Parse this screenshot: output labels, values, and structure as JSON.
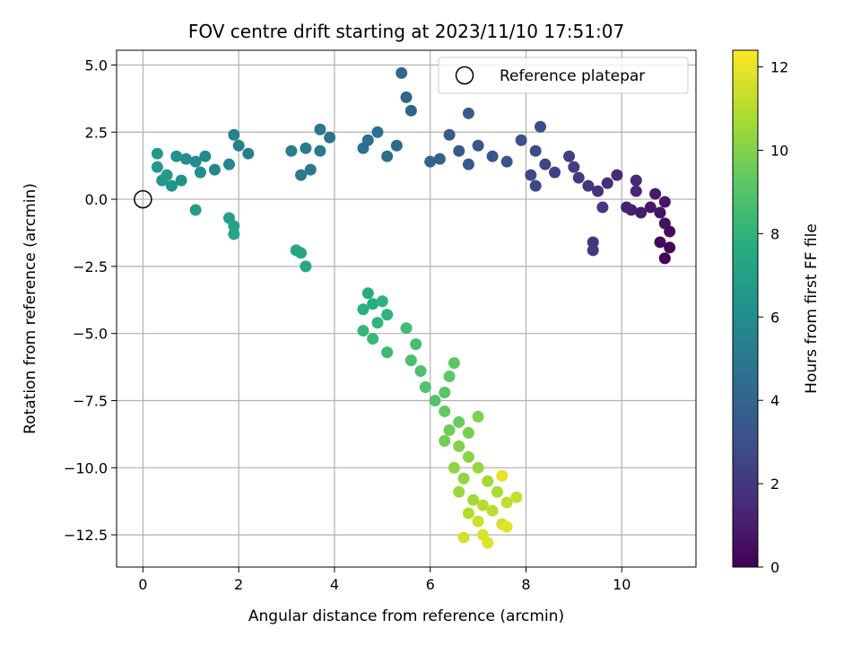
{
  "chart_data": {
    "type": "scatter",
    "title": "FOV centre drift starting at 2023/11/10 17:51:07",
    "xlabel": "Angular distance from reference (arcmin)",
    "ylabel": "Rotation from reference (arcmin)",
    "xlim": [
      -0.55,
      11.55
    ],
    "ylim": [
      -13.7,
      5.55
    ],
    "x_ticks": [
      0,
      2,
      4,
      6,
      8,
      10
    ],
    "y_ticks": [
      5.0,
      2.5,
      0.0,
      -2.5,
      -5.0,
      -7.5,
      -10.0,
      -12.5
    ],
    "x_tick_labels": [
      "0",
      "2",
      "4",
      "6",
      "8",
      "10"
    ],
    "y_tick_labels": [
      "5.0",
      "2.5",
      "0.0",
      "−2.5",
      "−5.0",
      "−7.5",
      "−10.0",
      "−12.5"
    ],
    "grid": true,
    "legend": {
      "position": "upper-right",
      "entries": [
        "Reference platepar"
      ]
    },
    "reference_point": {
      "x": 0.0,
      "y": 0.0,
      "label": "Reference platepar"
    },
    "colorbar": {
      "label": "Hours from first FF file",
      "colormap": "viridis",
      "range": [
        0,
        12.4
      ],
      "ticks": [
        0,
        2,
        4,
        6,
        8,
        10,
        12
      ],
      "tick_labels": [
        "0",
        "2",
        "4",
        "6",
        "8",
        "10",
        "12"
      ]
    },
    "points": [
      {
        "x": 10.9,
        "y": -2.2,
        "c": 0.1
      },
      {
        "x": 11.0,
        "y": -1.8,
        "c": 0.2
      },
      {
        "x": 10.8,
        "y": -1.6,
        "c": 0.3
      },
      {
        "x": 11.0,
        "y": -1.2,
        "c": 0.4
      },
      {
        "x": 10.9,
        "y": -0.9,
        "c": 0.5
      },
      {
        "x": 10.8,
        "y": -0.5,
        "c": 0.6
      },
      {
        "x": 10.9,
        "y": -0.1,
        "c": 0.7
      },
      {
        "x": 10.6,
        "y": -0.3,
        "c": 0.8
      },
      {
        "x": 10.7,
        "y": 0.2,
        "c": 0.9
      },
      {
        "x": 10.4,
        "y": -0.5,
        "c": 1.0
      },
      {
        "x": 10.2,
        "y": -0.4,
        "c": 1.1
      },
      {
        "x": 10.1,
        "y": -0.3,
        "c": 1.2
      },
      {
        "x": 10.3,
        "y": 0.3,
        "c": 1.3
      },
      {
        "x": 10.3,
        "y": 0.7,
        "c": 1.4
      },
      {
        "x": 9.9,
        "y": 0.9,
        "c": 1.5
      },
      {
        "x": 9.7,
        "y": 0.6,
        "c": 1.6
      },
      {
        "x": 9.5,
        "y": 0.3,
        "c": 1.7
      },
      {
        "x": 9.3,
        "y": 0.5,
        "c": 1.8
      },
      {
        "x": 9.4,
        "y": -1.6,
        "c": 1.9
      },
      {
        "x": 9.4,
        "y": -1.9,
        "c": 2.0
      },
      {
        "x": 9.6,
        "y": -0.3,
        "c": 2.0
      },
      {
        "x": 9.1,
        "y": 0.8,
        "c": 2.1
      },
      {
        "x": 9.0,
        "y": 1.2,
        "c": 2.2
      },
      {
        "x": 8.9,
        "y": 1.6,
        "c": 2.3
      },
      {
        "x": 8.6,
        "y": 1.0,
        "c": 2.4
      },
      {
        "x": 8.4,
        "y": 1.3,
        "c": 2.5
      },
      {
        "x": 8.2,
        "y": 0.5,
        "c": 2.6
      },
      {
        "x": 8.1,
        "y": 0.9,
        "c": 2.7
      },
      {
        "x": 8.2,
        "y": 1.8,
        "c": 2.8
      },
      {
        "x": 8.3,
        "y": 2.7,
        "c": 2.9
      },
      {
        "x": 7.9,
        "y": 2.2,
        "c": 3.0
      },
      {
        "x": 7.6,
        "y": 1.4,
        "c": 3.1
      },
      {
        "x": 7.3,
        "y": 1.6,
        "c": 3.2
      },
      {
        "x": 7.0,
        "y": 2.0,
        "c": 3.3
      },
      {
        "x": 6.8,
        "y": 1.3,
        "c": 3.4
      },
      {
        "x": 6.6,
        "y": 1.8,
        "c": 3.5
      },
      {
        "x": 6.4,
        "y": 2.4,
        "c": 3.6
      },
      {
        "x": 6.8,
        "y": 3.2,
        "c": 3.7
      },
      {
        "x": 6.2,
        "y": 1.5,
        "c": 3.8
      },
      {
        "x": 6.0,
        "y": 1.4,
        "c": 3.9
      },
      {
        "x": 5.6,
        "y": 3.3,
        "c": 4.0
      },
      {
        "x": 5.5,
        "y": 3.8,
        "c": 4.0
      },
      {
        "x": 5.4,
        "y": 4.7,
        "c": 4.1
      },
      {
        "x": 5.3,
        "y": 2.0,
        "c": 4.2
      },
      {
        "x": 5.1,
        "y": 1.6,
        "c": 4.3
      },
      {
        "x": 4.9,
        "y": 2.5,
        "c": 4.4
      },
      {
        "x": 4.7,
        "y": 2.2,
        "c": 4.5
      },
      {
        "x": 4.6,
        "y": 1.9,
        "c": 4.6
      },
      {
        "x": 3.9,
        "y": 2.3,
        "c": 4.7
      },
      {
        "x": 3.7,
        "y": 2.6,
        "c": 4.8
      },
      {
        "x": 3.7,
        "y": 1.8,
        "c": 4.9
      },
      {
        "x": 3.5,
        "y": 1.1,
        "c": 5.0
      },
      {
        "x": 3.3,
        "y": 0.9,
        "c": 5.0
      },
      {
        "x": 3.4,
        "y": 1.9,
        "c": 5.1
      },
      {
        "x": 3.1,
        "y": 1.8,
        "c": 5.2
      },
      {
        "x": 2.2,
        "y": 1.7,
        "c": 5.3
      },
      {
        "x": 2.0,
        "y": 2.0,
        "c": 5.4
      },
      {
        "x": 1.9,
        "y": 2.4,
        "c": 5.5
      },
      {
        "x": 1.8,
        "y": 1.3,
        "c": 5.6
      },
      {
        "x": 1.5,
        "y": 1.1,
        "c": 5.7
      },
      {
        "x": 1.3,
        "y": 1.6,
        "c": 5.8
      },
      {
        "x": 1.1,
        "y": 1.4,
        "c": 5.9
      },
      {
        "x": 1.2,
        "y": 1.0,
        "c": 6.0
      },
      {
        "x": 0.9,
        "y": 1.5,
        "c": 6.1
      },
      {
        "x": 0.7,
        "y": 1.6,
        "c": 6.2
      },
      {
        "x": 0.8,
        "y": 0.7,
        "c": 6.3
      },
      {
        "x": 0.6,
        "y": 0.5,
        "c": 6.4
      },
      {
        "x": 0.4,
        "y": 0.7,
        "c": 6.5
      },
      {
        "x": 0.3,
        "y": 1.2,
        "c": 6.6
      },
      {
        "x": 0.3,
        "y": 1.7,
        "c": 6.7
      },
      {
        "x": 0.5,
        "y": 0.9,
        "c": 6.8
      },
      {
        "x": 1.1,
        "y": -0.4,
        "c": 6.9
      },
      {
        "x": 1.8,
        "y": -0.7,
        "c": 7.0
      },
      {
        "x": 1.9,
        "y": -1.0,
        "c": 7.1
      },
      {
        "x": 1.9,
        "y": -1.3,
        "c": 7.2
      },
      {
        "x": 3.2,
        "y": -1.9,
        "c": 7.3
      },
      {
        "x": 3.3,
        "y": -2.0,
        "c": 7.4
      },
      {
        "x": 3.4,
        "y": -2.5,
        "c": 7.5
      },
      {
        "x": 4.7,
        "y": -3.5,
        "c": 7.6
      },
      {
        "x": 4.8,
        "y": -3.9,
        "c": 7.7
      },
      {
        "x": 4.6,
        "y": -4.1,
        "c": 7.8
      },
      {
        "x": 5.0,
        "y": -3.8,
        "c": 7.9
      },
      {
        "x": 5.1,
        "y": -4.3,
        "c": 8.0
      },
      {
        "x": 4.9,
        "y": -4.6,
        "c": 8.1
      },
      {
        "x": 4.6,
        "y": -4.9,
        "c": 8.2
      },
      {
        "x": 4.8,
        "y": -5.2,
        "c": 8.3
      },
      {
        "x": 5.1,
        "y": -5.7,
        "c": 8.4
      },
      {
        "x": 5.5,
        "y": -4.8,
        "c": 8.5
      },
      {
        "x": 5.7,
        "y": -5.4,
        "c": 8.6
      },
      {
        "x": 5.6,
        "y": -6.0,
        "c": 8.7
      },
      {
        "x": 5.8,
        "y": -6.4,
        "c": 8.8
      },
      {
        "x": 5.9,
        "y": -7.0,
        "c": 8.9
      },
      {
        "x": 6.1,
        "y": -7.5,
        "c": 9.0
      },
      {
        "x": 6.3,
        "y": -7.2,
        "c": 9.1
      },
      {
        "x": 6.5,
        "y": -6.1,
        "c": 9.2
      },
      {
        "x": 6.4,
        "y": -6.6,
        "c": 9.3
      },
      {
        "x": 6.3,
        "y": -7.9,
        "c": 9.4
      },
      {
        "x": 6.6,
        "y": -8.3,
        "c": 9.5
      },
      {
        "x": 6.4,
        "y": -8.6,
        "c": 9.6
      },
      {
        "x": 6.3,
        "y": -9.0,
        "c": 9.7
      },
      {
        "x": 6.8,
        "y": -8.7,
        "c": 9.8
      },
      {
        "x": 7.0,
        "y": -8.1,
        "c": 9.9
      },
      {
        "x": 6.6,
        "y": -9.2,
        "c": 10.0
      },
      {
        "x": 6.8,
        "y": -9.6,
        "c": 10.1
      },
      {
        "x": 6.5,
        "y": -10.0,
        "c": 10.2
      },
      {
        "x": 6.7,
        "y": -10.4,
        "c": 10.3
      },
      {
        "x": 7.0,
        "y": -10.0,
        "c": 10.4
      },
      {
        "x": 6.6,
        "y": -10.9,
        "c": 10.5
      },
      {
        "x": 6.9,
        "y": -11.2,
        "c": 10.6
      },
      {
        "x": 7.2,
        "y": -10.5,
        "c": 10.7
      },
      {
        "x": 7.4,
        "y": -10.9,
        "c": 10.8
      },
      {
        "x": 6.8,
        "y": -11.7,
        "c": 10.9
      },
      {
        "x": 7.1,
        "y": -11.4,
        "c": 11.0
      },
      {
        "x": 7.3,
        "y": -11.6,
        "c": 11.1
      },
      {
        "x": 7.6,
        "y": -11.3,
        "c": 11.2
      },
      {
        "x": 7.8,
        "y": -11.1,
        "c": 11.3
      },
      {
        "x": 7.0,
        "y": -12.0,
        "c": 11.4
      },
      {
        "x": 7.5,
        "y": -12.1,
        "c": 11.5
      },
      {
        "x": 6.7,
        "y": -12.6,
        "c": 11.6
      },
      {
        "x": 7.1,
        "y": -12.5,
        "c": 11.7
      },
      {
        "x": 7.2,
        "y": -12.8,
        "c": 11.8
      },
      {
        "x": 7.6,
        "y": -12.2,
        "c": 11.9
      },
      {
        "x": 7.5,
        "y": -10.3,
        "c": 12.0
      }
    ]
  }
}
